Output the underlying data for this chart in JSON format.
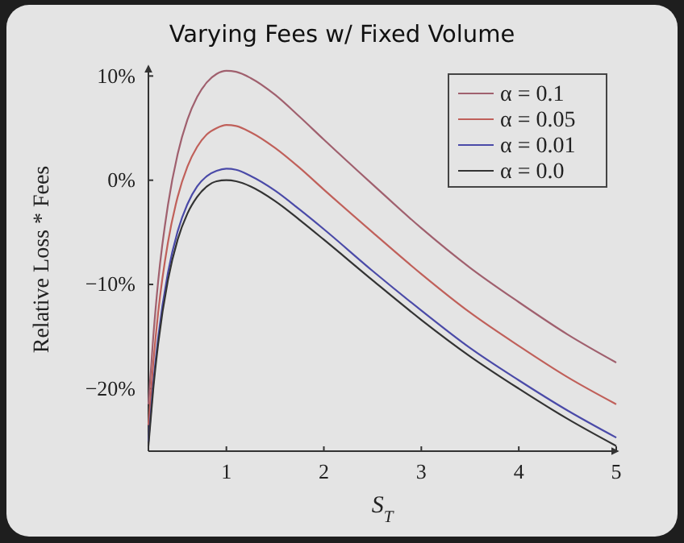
{
  "chart_data": {
    "type": "line",
    "title": "Varying Fees w/ Fixed Volume",
    "xlabel": "S$_{T}$",
    "ylabel": "Relative Loss * Fees",
    "x": [
      0.2,
      0.25,
      0.3,
      0.4,
      0.5,
      0.6,
      0.7,
      0.8,
      0.9,
      1,
      1.1,
      1.25,
      1.5,
      1.75,
      2,
      2.5,
      3,
      3.5,
      4,
      4.5,
      5
    ],
    "series": [
      {
        "name": "α = 0.1",
        "color": "#a0606e",
        "values": [
          -21.5,
          -15.0,
          -9.7,
          -2.4,
          2.5,
          5.8,
          8.0,
          9.4,
          10.2,
          10.5,
          10.4,
          9.8,
          8.2,
          6.1,
          3.9,
          -0.4,
          -4.6,
          -8.4,
          -11.7,
          -14.8,
          -17.5
        ]
      },
      {
        "name": "α = 0.05",
        "color": "#c0605a",
        "values": [
          -23.5,
          -17.5,
          -12.7,
          -6.0,
          -1.6,
          1.3,
          3.2,
          4.4,
          5.0,
          5.3,
          5.2,
          4.6,
          3.1,
          1.2,
          -0.9,
          -5.0,
          -9.0,
          -12.7,
          -15.9,
          -18.9,
          -21.5
        ]
      },
      {
        "name": "α = 0.01",
        "color": "#4a4aa8",
        "values": [
          -25.1,
          -19.5,
          -15.1,
          -8.9,
          -4.9,
          -2.3,
          -0.6,
          0.4,
          0.9,
          1.1,
          1.0,
          0.4,
          -1.0,
          -2.8,
          -4.7,
          -8.7,
          -12.5,
          -16.1,
          -19.2,
          -22.1,
          -24.7
        ]
      },
      {
        "name": "α = 0.0",
        "color": "#333333",
        "values": [
          -25.5,
          -20.0,
          -15.7,
          -9.6,
          -5.7,
          -3.2,
          -1.6,
          -0.6,
          -0.1,
          0,
          -0.1,
          -0.6,
          -2.0,
          -3.8,
          -5.7,
          -9.6,
          -13.4,
          -16.9,
          -20.0,
          -22.9,
          -25.5
        ]
      }
    ],
    "xlim": [
      0.2,
      5
    ],
    "xticks": [
      1,
      2,
      3,
      4,
      5
    ],
    "ylim": [
      -26,
      10.8
    ],
    "yticks": [
      {
        "value": 10,
        "label": "10%"
      },
      {
        "value": 0,
        "label": "0%"
      },
      {
        "value": -10,
        "label": "−10%"
      },
      {
        "value": -20,
        "label": "−20%"
      }
    ],
    "grid": false,
    "legend": "top right",
    "marker": "none",
    "line_style": "solid"
  }
}
